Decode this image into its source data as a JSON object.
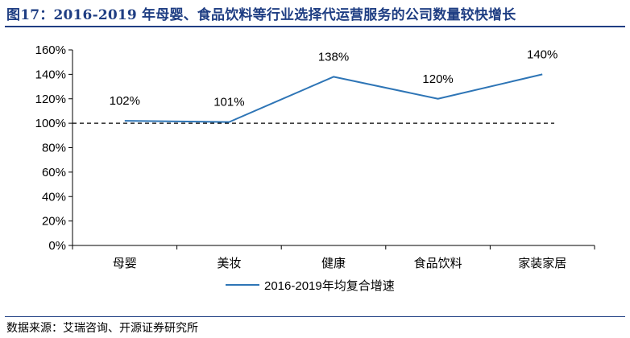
{
  "figure": {
    "title": "图17：2016-2019 年母婴、食品饮料等行业选择代运营服务的公司数量较快增长",
    "source": "数据来源：艾瑞咨询、开源证券研究所"
  },
  "colors": {
    "title": "#1f3e83",
    "line": "#2e75b6",
    "reference": "#000000",
    "axis": "#000000"
  },
  "chart_data": {
    "type": "line",
    "categories": [
      "母婴",
      "美妆",
      "健康",
      "食品饮料",
      "家装家居"
    ],
    "series": [
      {
        "name": "2016-2019年均复合增速",
        "values": [
          102,
          101,
          138,
          120,
          140
        ],
        "labels": [
          "102%",
          "101%",
          "138%",
          "120%",
          "140%"
        ]
      }
    ],
    "ylim": [
      0,
      160
    ],
    "yticks": [
      0,
      20,
      40,
      60,
      80,
      100,
      120,
      140,
      160
    ],
    "ytick_labels": [
      "0%",
      "20%",
      "40%",
      "60%",
      "80%",
      "100%",
      "120%",
      "140%",
      "160%"
    ],
    "reference_line": 100,
    "legend_position": "bottom",
    "grid": false,
    "xlabel": "",
    "ylabel": ""
  }
}
